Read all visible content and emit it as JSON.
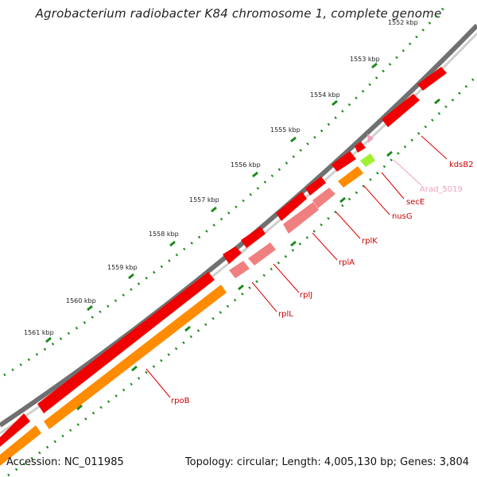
{
  "title": "Agrobacterium radiobacter K84 chromosome 1, complete genome",
  "accession_line": "Accession: NC_011985",
  "info_line": "Topology: circular; Length: 4,005,130 bp; Genes: 3,804",
  "colors": {
    "backbone_outer": "#707070",
    "backbone_inner": "#c8c8c8",
    "gene_red": "#f00000",
    "gene_pink": "#f08080",
    "gene_orange": "#ff8c00",
    "gene_lightgreen": "#a0f030",
    "gene_lightpink": "#f0a0c0",
    "tick_green": "#1a8a1a",
    "leader_red": "#e00000",
    "leader_pink": "#f0a0c0"
  },
  "ticks": [
    {
      "label": "1552 kbp"
    },
    {
      "label": "1553 kbp"
    },
    {
      "label": "1554 kbp"
    },
    {
      "label": "1555 kbp"
    },
    {
      "label": "1556 kbp"
    },
    {
      "label": "1557 kbp"
    },
    {
      "label": "1558 kbp"
    },
    {
      "label": "1559 kbp"
    },
    {
      "label": "1560 kbp"
    },
    {
      "label": "1561 kbp"
    }
  ],
  "genes": [
    {
      "label": "kdsB2",
      "color": "red"
    },
    {
      "label": "Arad_5019",
      "color": "lightpink"
    },
    {
      "label": "secE",
      "color": "red"
    },
    {
      "label": "nusG",
      "color": "red"
    },
    {
      "label": "rplK",
      "color": "red"
    },
    {
      "label": "rplA",
      "color": "red"
    },
    {
      "label": "rplJ",
      "color": "red"
    },
    {
      "label": "rplL",
      "color": "red"
    },
    {
      "label": "rpoB",
      "color": "red"
    }
  ]
}
